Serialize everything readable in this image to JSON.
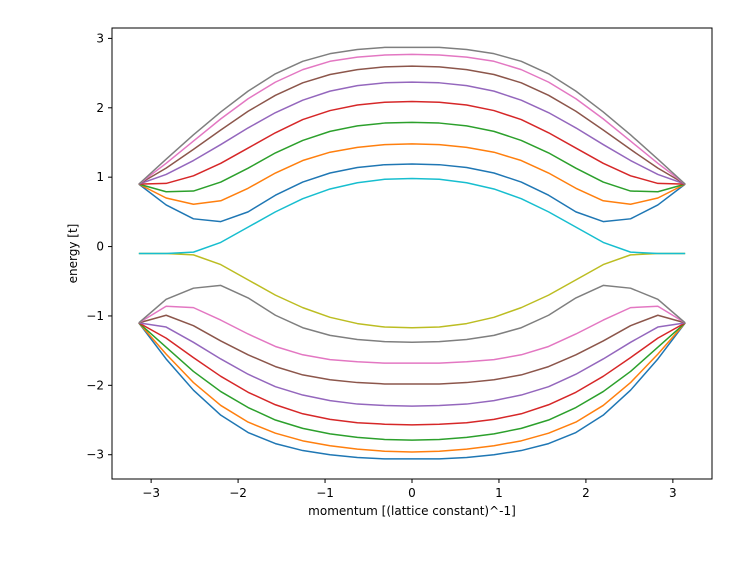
{
  "chart_data": {
    "type": "line",
    "xlabel": "momentum [(lattice constant)^-1]",
    "ylabel": "energy [t]",
    "xlim": [
      -3.45,
      3.45
    ],
    "ylim": [
      -3.35,
      3.15
    ],
    "xticks": [
      -3,
      -2,
      -1,
      0,
      1,
      2,
      3
    ],
    "yticks": [
      -3,
      -2,
      -1,
      0,
      1,
      2,
      3
    ],
    "xtick_labels": [
      "−3",
      "−2",
      "−1",
      "0",
      "1",
      "2",
      "3"
    ],
    "ytick_labels": [
      "−3",
      "−2",
      "−1",
      "0",
      "1",
      "2",
      "3"
    ],
    "grid": false,
    "x": [
      -3.1416,
      -2.8274,
      -2.5133,
      -2.1991,
      -1.885,
      -1.5708,
      -1.2566,
      -0.9425,
      -0.6283,
      -0.3142,
      0.0,
      0.3142,
      0.6283,
      0.9425,
      1.2566,
      1.5708,
      1.885,
      2.1991,
      2.5133,
      2.8274,
      3.1416
    ],
    "series": [
      {
        "color": "#1f77b4",
        "values": [
          -1.1,
          -1.62,
          -2.07,
          -2.43,
          -2.68,
          -2.84,
          -2.94,
          -3.0,
          -3.04,
          -3.06,
          -3.06,
          -3.06,
          -3.04,
          -3.0,
          -2.94,
          -2.84,
          -2.68,
          -2.43,
          -2.07,
          -1.62,
          -1.1
        ]
      },
      {
        "color": "#ff7f0e",
        "values": [
          -1.1,
          -1.55,
          -1.96,
          -2.29,
          -2.53,
          -2.69,
          -2.8,
          -2.87,
          -2.92,
          -2.95,
          -2.96,
          -2.95,
          -2.92,
          -2.87,
          -2.8,
          -2.69,
          -2.53,
          -2.29,
          -1.96,
          -1.55,
          -1.1
        ]
      },
      {
        "color": "#2ca02c",
        "values": [
          -1.1,
          -1.45,
          -1.8,
          -2.09,
          -2.32,
          -2.5,
          -2.62,
          -2.7,
          -2.75,
          -2.78,
          -2.79,
          -2.78,
          -2.75,
          -2.7,
          -2.62,
          -2.5,
          -2.32,
          -2.09,
          -1.8,
          -1.45,
          -1.1
        ]
      },
      {
        "color": "#d62728",
        "values": [
          -1.1,
          -1.32,
          -1.6,
          -1.87,
          -2.1,
          -2.28,
          -2.41,
          -2.49,
          -2.54,
          -2.56,
          -2.57,
          -2.56,
          -2.54,
          -2.49,
          -2.41,
          -2.28,
          -2.1,
          -1.87,
          -1.6,
          -1.32,
          -1.1
        ]
      },
      {
        "color": "#9467bd",
        "values": [
          -1.1,
          -1.16,
          -1.38,
          -1.62,
          -1.84,
          -2.02,
          -2.14,
          -2.22,
          -2.27,
          -2.29,
          -2.3,
          -2.29,
          -2.27,
          -2.22,
          -2.14,
          -2.02,
          -1.84,
          -1.62,
          -1.38,
          -1.16,
          -1.1
        ]
      },
      {
        "color": "#8c564b",
        "values": [
          -1.1,
          -0.99,
          -1.14,
          -1.36,
          -1.56,
          -1.73,
          -1.85,
          -1.92,
          -1.96,
          -1.98,
          -1.98,
          -1.98,
          -1.96,
          -1.92,
          -1.85,
          -1.73,
          -1.56,
          -1.36,
          -1.14,
          -0.99,
          -1.1
        ]
      },
      {
        "color": "#e377c2",
        "values": [
          -1.1,
          -0.86,
          -0.88,
          -1.06,
          -1.26,
          -1.44,
          -1.56,
          -1.63,
          -1.66,
          -1.68,
          -1.68,
          -1.68,
          -1.66,
          -1.63,
          -1.56,
          -1.44,
          -1.26,
          -1.06,
          -0.88,
          -0.86,
          -1.1
        ]
      },
      {
        "color": "#7f7f7f",
        "values": [
          -1.1,
          -0.76,
          -0.6,
          -0.56,
          -0.74,
          -0.99,
          -1.17,
          -1.28,
          -1.34,
          -1.37,
          -1.38,
          -1.37,
          -1.34,
          -1.28,
          -1.17,
          -0.99,
          -0.74,
          -0.56,
          -0.6,
          -0.76,
          -1.1
        ]
      },
      {
        "color": "#bcbd22",
        "values": [
          -0.1,
          -0.1,
          -0.12,
          -0.26,
          -0.48,
          -0.7,
          -0.88,
          -1.02,
          -1.11,
          -1.16,
          -1.17,
          -1.16,
          -1.11,
          -1.02,
          -0.88,
          -0.7,
          -0.48,
          -0.26,
          -0.12,
          -0.1,
          -0.1
        ]
      },
      {
        "color": "#17becf",
        "values": [
          -0.1,
          -0.1,
          -0.08,
          0.06,
          0.28,
          0.5,
          0.69,
          0.83,
          0.92,
          0.97,
          0.98,
          0.97,
          0.92,
          0.83,
          0.69,
          0.5,
          0.28,
          0.06,
          -0.08,
          -0.1,
          -0.1
        ]
      },
      {
        "color": "#1f77b4",
        "values": [
          0.9,
          0.6,
          0.4,
          0.36,
          0.5,
          0.74,
          0.93,
          1.06,
          1.14,
          1.18,
          1.19,
          1.18,
          1.14,
          1.06,
          0.93,
          0.74,
          0.5,
          0.36,
          0.4,
          0.6,
          0.9
        ]
      },
      {
        "color": "#ff7f0e",
        "values": [
          0.9,
          0.7,
          0.61,
          0.66,
          0.84,
          1.06,
          1.24,
          1.36,
          1.43,
          1.47,
          1.48,
          1.47,
          1.43,
          1.36,
          1.24,
          1.06,
          0.84,
          0.66,
          0.61,
          0.7,
          0.9
        ]
      },
      {
        "color": "#2ca02c",
        "values": [
          0.9,
          0.79,
          0.8,
          0.93,
          1.13,
          1.35,
          1.53,
          1.66,
          1.74,
          1.78,
          1.79,
          1.78,
          1.74,
          1.66,
          1.53,
          1.35,
          1.13,
          0.93,
          0.8,
          0.79,
          0.9
        ]
      },
      {
        "color": "#d62728",
        "values": [
          0.9,
          0.91,
          1.02,
          1.2,
          1.42,
          1.64,
          1.83,
          1.96,
          2.04,
          2.08,
          2.09,
          2.08,
          2.04,
          1.96,
          1.83,
          1.64,
          1.42,
          1.2,
          1.02,
          0.91,
          0.9
        ]
      },
      {
        "color": "#9467bd",
        "values": [
          0.9,
          1.04,
          1.24,
          1.47,
          1.71,
          1.93,
          2.11,
          2.24,
          2.32,
          2.36,
          2.37,
          2.36,
          2.32,
          2.24,
          2.11,
          1.93,
          1.71,
          1.47,
          1.24,
          1.04,
          0.9
        ]
      },
      {
        "color": "#8c564b",
        "values": [
          0.9,
          1.13,
          1.4,
          1.68,
          1.95,
          2.18,
          2.36,
          2.48,
          2.55,
          2.59,
          2.6,
          2.59,
          2.55,
          2.48,
          2.36,
          2.18,
          1.95,
          1.68,
          1.4,
          1.13,
          0.9
        ]
      },
      {
        "color": "#e377c2",
        "values": [
          0.9,
          1.2,
          1.52,
          1.84,
          2.13,
          2.37,
          2.55,
          2.67,
          2.73,
          2.76,
          2.77,
          2.76,
          2.73,
          2.67,
          2.55,
          2.37,
          2.13,
          1.84,
          1.52,
          1.2,
          0.9
        ]
      },
      {
        "color": "#7f7f7f",
        "values": [
          0.9,
          1.26,
          1.61,
          1.94,
          2.24,
          2.49,
          2.67,
          2.78,
          2.84,
          2.87,
          2.87,
          2.87,
          2.84,
          2.78,
          2.67,
          2.49,
          2.24,
          1.94,
          1.61,
          1.26,
          0.9
        ]
      }
    ]
  }
}
